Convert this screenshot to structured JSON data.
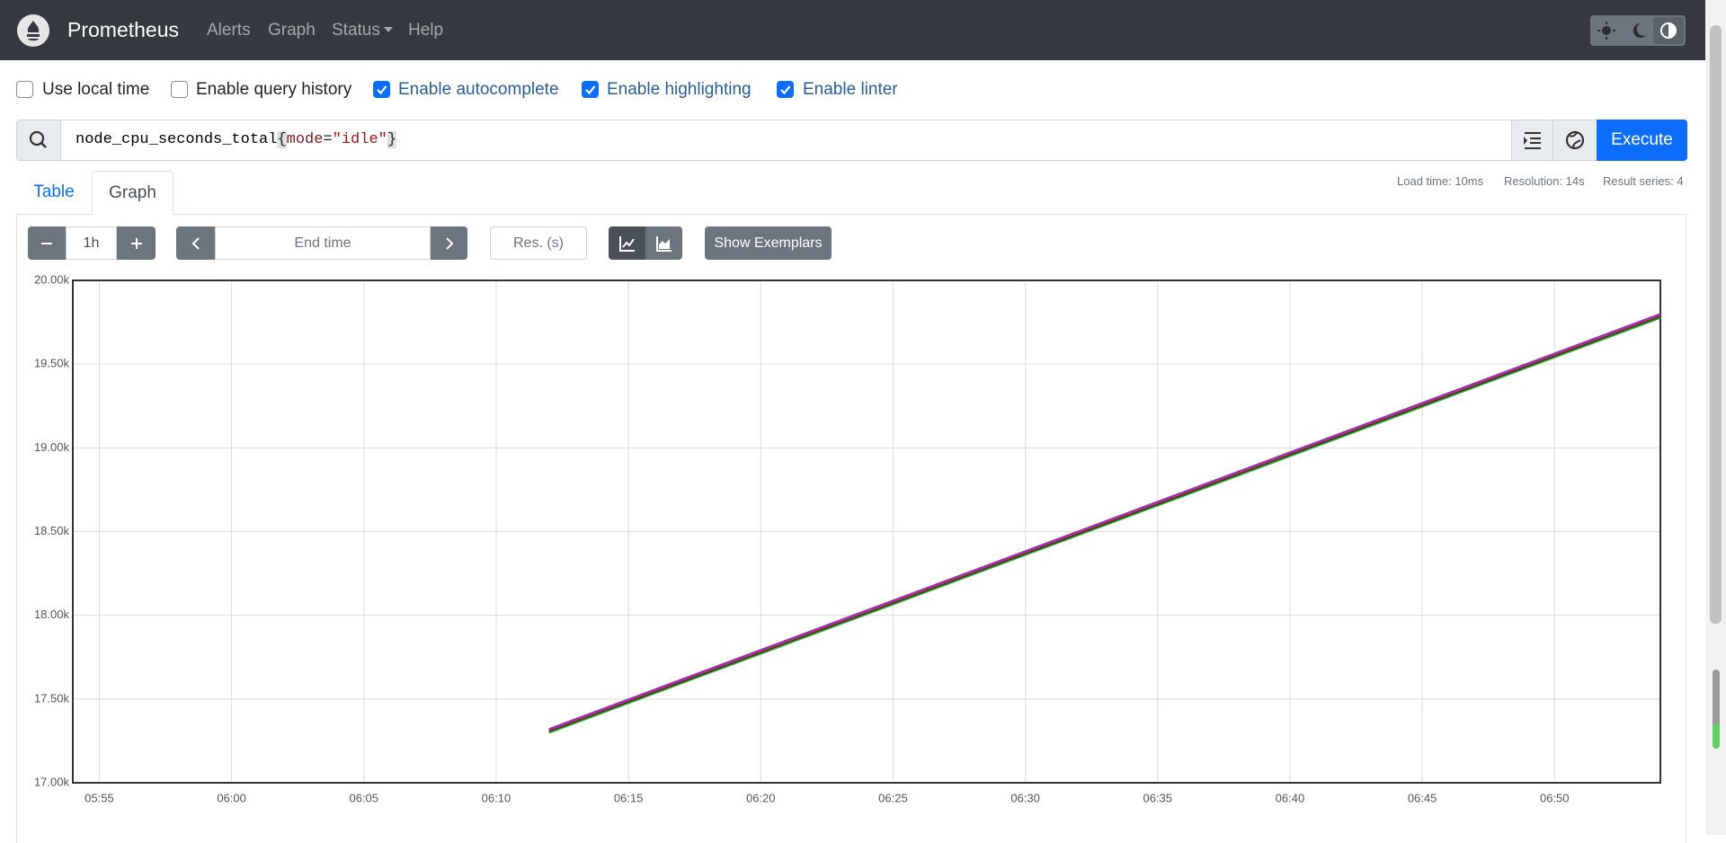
{
  "navbar": {
    "brand": "Prometheus",
    "links": [
      "Alerts",
      "Graph",
      "Status",
      "Help"
    ]
  },
  "options": [
    "Use local time",
    "Enable query history",
    "Enable autocomplete",
    "Enable highlighting",
    "Enable linter"
  ],
  "options_checked": [
    false,
    false,
    true,
    true,
    true
  ],
  "query": {
    "metric": "node_cpu_seconds_total",
    "open": "{",
    "label": "mode",
    "op": "=",
    "value": "\"idle\"",
    "close": "}"
  },
  "execute": "Execute",
  "tabs": [
    "Table",
    "Graph"
  ],
  "stats": [
    "Load time: 10ms",
    "Resolution: 14s",
    "Result series: 4"
  ],
  "controls": {
    "range": "1h",
    "end_time": "End time",
    "resolution": "Res. (s)",
    "exemplars": "Show Exemplars"
  },
  "chart_data": {
    "type": "line",
    "x": [
      "06:12",
      "06:14",
      "06:16",
      "06:18",
      "06:20",
      "06:22",
      "06:24",
      "06:26",
      "06:28",
      "06:30",
      "06:32",
      "06:34",
      "06:36",
      "06:38",
      "06:40",
      "06:42",
      "06:44",
      "06:46",
      "06:48",
      "06:50",
      "06:52",
      "06:54"
    ],
    "series": [
      {
        "color": "#2ca02c",
        "values": [
          17300,
          17418,
          17536,
          17654,
          17772,
          17890,
          18008,
          18126,
          18244,
          18362,
          18480,
          18598,
          18716,
          18834,
          18952,
          19070,
          19188,
          19306,
          19424,
          19542,
          19660,
          19778
        ]
      },
      {
        "color": "#222222",
        "values": [
          17310,
          17428,
          17546,
          17664,
          17782,
          17900,
          18018,
          18136,
          18254,
          18372,
          18490,
          18608,
          18726,
          18844,
          18962,
          19080,
          19198,
          19316,
          19434,
          19552,
          19670,
          19788
        ]
      },
      {
        "color": "#c0392b",
        "values": [
          17315,
          17433,
          17551,
          17669,
          17787,
          17905,
          18023,
          18141,
          18259,
          18377,
          18495,
          18613,
          18731,
          18849,
          18967,
          19085,
          19203,
          19321,
          19439,
          19557,
          19675,
          19793
        ]
      },
      {
        "color": "#9b30b0",
        "values": [
          17320,
          17438,
          17556,
          17674,
          17792,
          17910,
          18028,
          18146,
          18264,
          18382,
          18500,
          18618,
          18736,
          18854,
          18972,
          19090,
          19208,
          19326,
          19444,
          19562,
          19680,
          19798
        ]
      }
    ],
    "xlim": [
      "05:54",
      "06:54"
    ],
    "xticks": [
      "05:55",
      "06:00",
      "06:05",
      "06:10",
      "06:15",
      "06:20",
      "06:25",
      "06:30",
      "06:35",
      "06:40",
      "06:45",
      "06:50"
    ],
    "ylim": [
      17000,
      20000
    ],
    "yticks": [
      {
        "value": 17000,
        "label": "17.00k"
      },
      {
        "value": 17500,
        "label": "17.50k"
      },
      {
        "value": 18000,
        "label": "18.00k"
      },
      {
        "value": 18500,
        "label": "18.50k"
      },
      {
        "value": 19000,
        "label": "19.00k"
      },
      {
        "value": 19500,
        "label": "19.50k"
      },
      {
        "value": 20000,
        "label": "20.00k"
      }
    ],
    "grid": true
  }
}
